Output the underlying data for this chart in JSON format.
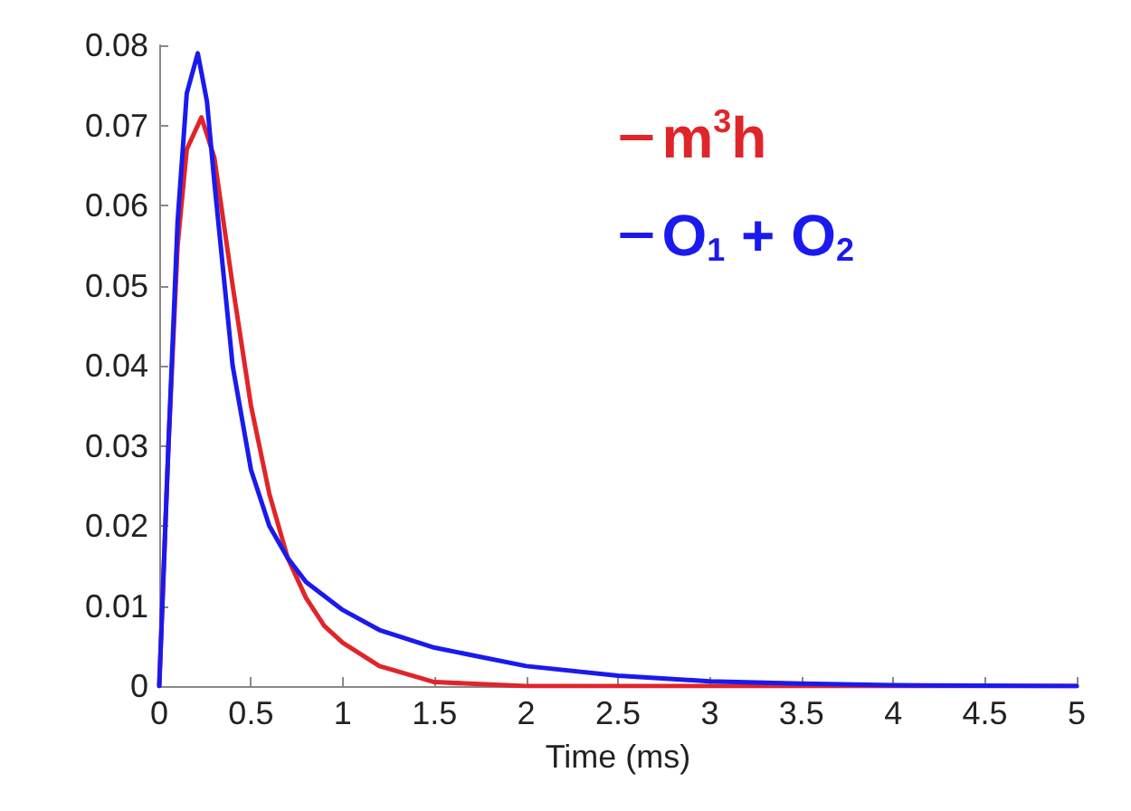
{
  "chart_data": {
    "type": "line",
    "xlabel": "Time (ms)",
    "xlim": [
      0,
      5
    ],
    "xticks": [
      0,
      0.5,
      1,
      1.5,
      2,
      2.5,
      3,
      3.5,
      4,
      4.5,
      5
    ],
    "ylim": [
      0,
      0.08
    ],
    "yticks": [
      0,
      0.01,
      0.02,
      0.03,
      0.04,
      0.05,
      0.06,
      0.07,
      0.08
    ],
    "grid": false,
    "legend": "top right",
    "marker": "none",
    "line_style": "solid",
    "series": [
      {
        "name": "m$^{3}$h",
        "color": "#e0252a",
        "x": [
          0,
          0.05,
          0.1,
          0.15,
          0.23,
          0.3,
          0.4,
          0.5,
          0.6,
          0.7,
          0.8,
          0.9,
          1,
          1.2,
          1.5,
          2,
          3,
          4,
          5
        ],
        "values": [
          0,
          0.03,
          0.055,
          0.067,
          0.071,
          0.066,
          0.05,
          0.035,
          0.024,
          0.016,
          0.011,
          0.0075,
          0.0054,
          0.0025,
          0.0005,
          0,
          0,
          0,
          0
        ]
      },
      {
        "name": "O$_{1}$ + O$_{2}$",
        "color": "#1a1aee",
        "x": [
          0,
          0.05,
          0.1,
          0.15,
          0.21,
          0.26,
          0.3,
          0.4,
          0.5,
          0.6,
          0.7,
          0.8,
          1,
          1.2,
          1.5,
          2,
          2.5,
          3,
          3.5,
          4,
          5
        ],
        "values": [
          0,
          0.03,
          0.058,
          0.074,
          0.079,
          0.073,
          0.063,
          0.04,
          0.027,
          0.02,
          0.016,
          0.013,
          0.0095,
          0.007,
          0.0048,
          0.0025,
          0.0013,
          0.0006,
          0.0003,
          0.0001,
          0
        ]
      }
    ]
  }
}
